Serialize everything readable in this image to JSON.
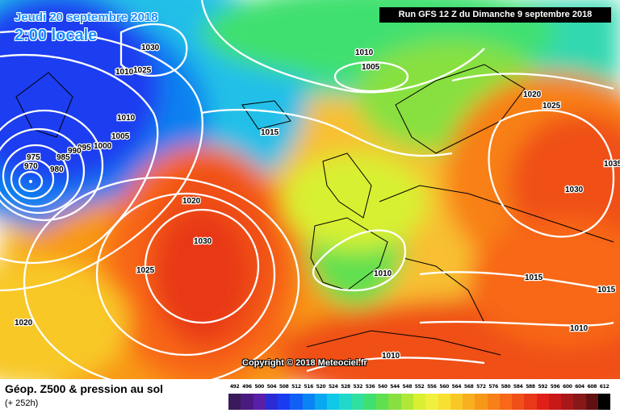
{
  "header": {
    "date": "Jeudi 20 septembre 2018",
    "local_time": "2:00 locale",
    "run": "Run GFS 12 Z du Dimanche 9 septembre 2018"
  },
  "copyright": "Copyright © 2018 Meteociel.fr",
  "legend": {
    "title": "Géop. Z500 & pression au sol",
    "subtitle": "(+ 252h)",
    "values": [
      "492",
      "496",
      "500",
      "504",
      "508",
      "512",
      "516",
      "520",
      "524",
      "528",
      "532",
      "536",
      "540",
      "544",
      "548",
      "552",
      "556",
      "560",
      "564",
      "568",
      "572",
      "576",
      "580",
      "584",
      "588",
      "592",
      "596",
      "600",
      "604",
      "608",
      "612"
    ],
    "colors": [
      "#3a1a5a",
      "#4b1a80",
      "#5a1fa8",
      "#2b2bd6",
      "#1a3cf0",
      "#1060f5",
      "#0a84f5",
      "#08a8f0",
      "#10c8e8",
      "#20d8c8",
      "#30e0a0",
      "#40e070",
      "#60e050",
      "#88e040",
      "#b0e838",
      "#d8f030",
      "#f0f040",
      "#f8e030",
      "#f8c828",
      "#f8b020",
      "#f89818",
      "#f88018",
      "#f86818",
      "#f05018",
      "#e83818",
      "#e02018",
      "#c81818",
      "#a81818",
      "#881818",
      "#601010",
      "#000000"
    ]
  },
  "map": {
    "isobar_labels": [
      "1030",
      "1025",
      "1010",
      "1010",
      "1005",
      "1015",
      "1010",
      "1005",
      "1000",
      "995",
      "990",
      "985",
      "980",
      "975",
      "970",
      "1020",
      "1030",
      "1025",
      "1020",
      "1010",
      "1020",
      "1025",
      "1030",
      "1015",
      "1015",
      "1010",
      "1010",
      "1035"
    ]
  }
}
